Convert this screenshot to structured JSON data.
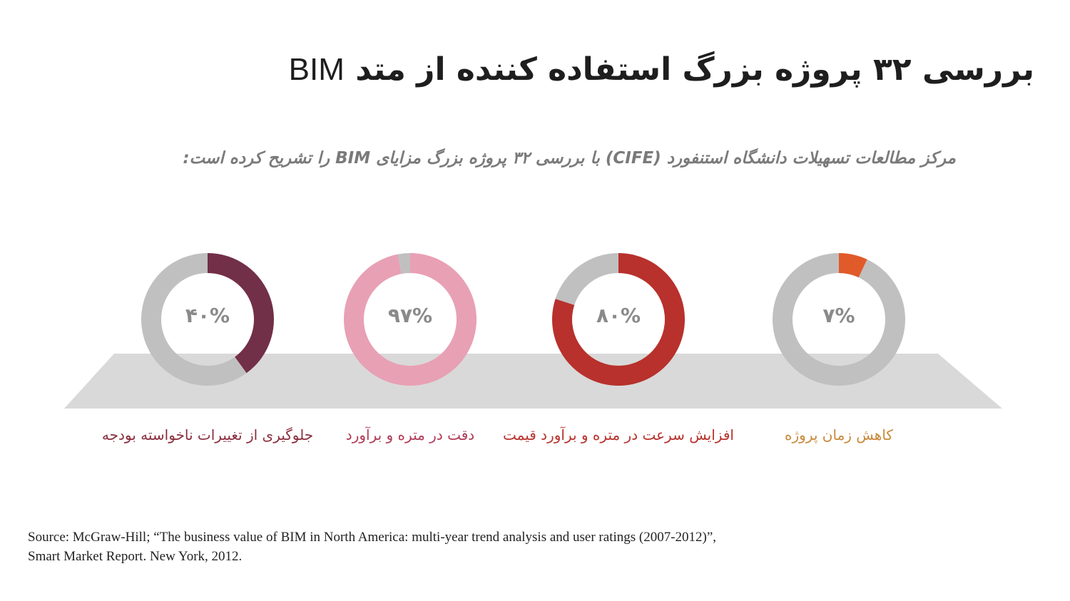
{
  "header": {
    "title_fa": "بررسی ۳۲ پروژه بزرگ استفاده کننده از متد",
    "title_latin": "BIM",
    "subtitle": "مرکز مطالعات تسهیلات دانشگاه استنفورد (CIFE) با بررسی ۳۲ پروژه بزرگ مزایای BIM را تشریح کرده است:"
  },
  "chart_data": {
    "type": "pie",
    "subtype": "donut",
    "series": [
      {
        "label": "کاهش زمان پروژه",
        "value": 7,
        "display": "۷%",
        "color": "#e15a2a",
        "label_color": "#c8893a"
      },
      {
        "label": "افزایش سرعت در متره و برآورد قیمت",
        "value": 80,
        "display": "۸۰%",
        "color": "#b8312c",
        "label_color": "#b8312c"
      },
      {
        "label": "دقت در متره و برآورد",
        "value": 97,
        "display": "۹۷%",
        "color": "#e8a0b4",
        "label_color": "#b03a55"
      },
      {
        "label": "جلوگیری از تغییرات ناخواسته بودجه",
        "value": 40,
        "display": "۴۰%",
        "color": "#722f48",
        "label_color": "#8a2e3e"
      }
    ],
    "remainder_color": "#c0c0c0",
    "platform_color": "#d9d9d9"
  },
  "source": {
    "line1": "Source: McGraw-Hill; “The business value of BIM in North America: multi-year trend analysis and user ratings (2007-2012)”,",
    "line2": "Smart Market Report. New York, 2012."
  }
}
